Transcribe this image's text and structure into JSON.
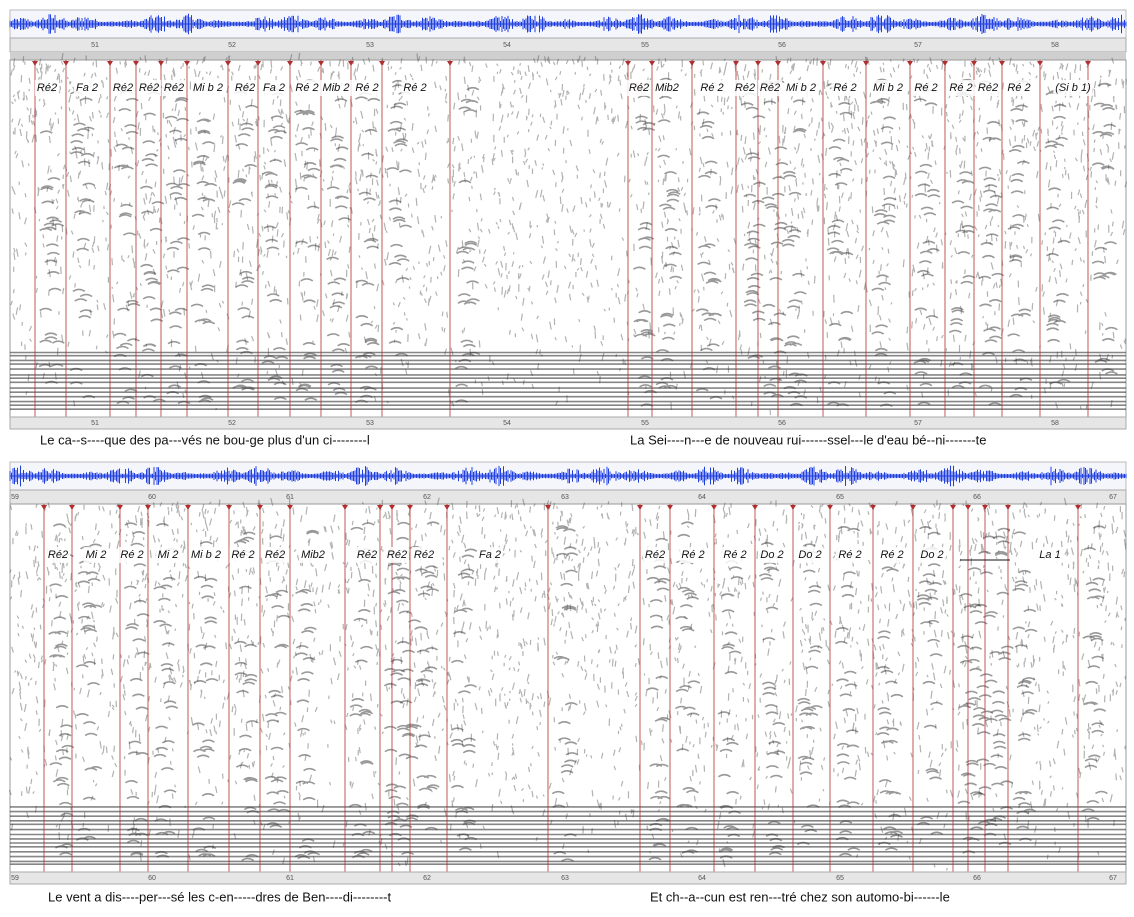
{
  "panels": [
    {
      "time_labels": [
        "51",
        "52",
        "53",
        "54",
        "55",
        "56",
        "57",
        "58"
      ],
      "notes": [
        "Ré2",
        "Fa 2",
        "Ré2",
        "Ré2",
        "Ré2",
        "Mi b 2",
        "Ré2",
        "Fa 2",
        "Ré 2",
        "Mib 2",
        "Ré 2",
        "Ré 2",
        "Ré2",
        "Mib2",
        "Ré 2",
        "Ré2",
        "Ré2",
        "Mi b 2",
        "Ré 2",
        "Mi b 2",
        "Ré 2",
        "Ré 2",
        "Ré2",
        "Ré 2",
        "(Si b 1)"
      ],
      "lyrics": [
        "Le ca--s----que des pa---vés   ne   bou-ge plus d'un ci--------l",
        "La Sei----n---e  de nouveau  rui------ssel---le  d'eau bé--ni-------te"
      ]
    },
    {
      "time_labels": [
        "59",
        "60",
        "61",
        "62",
        "63",
        "64",
        "65",
        "66",
        "67"
      ],
      "notes": [
        "Ré2",
        "Mi 2",
        "Ré 2",
        "Mi 2",
        "Mi b 2",
        "Ré 2",
        "Ré2",
        "Mib2",
        "Ré2",
        "Ré2",
        "Ré2",
        "Fa 2",
        "Ré2",
        "Ré 2",
        "Ré 2",
        "Do 2",
        "Do 2",
        "Ré 2",
        "Ré 2",
        "Do 2",
        "La 1"
      ],
      "lyrics": [
        "Le vent  a  dis----per---sé  les c-en-----dres de Ben----di--------t",
        "Et  ch--a--cun  est ren---tré   chez son automo-bi------le"
      ]
    }
  ]
}
